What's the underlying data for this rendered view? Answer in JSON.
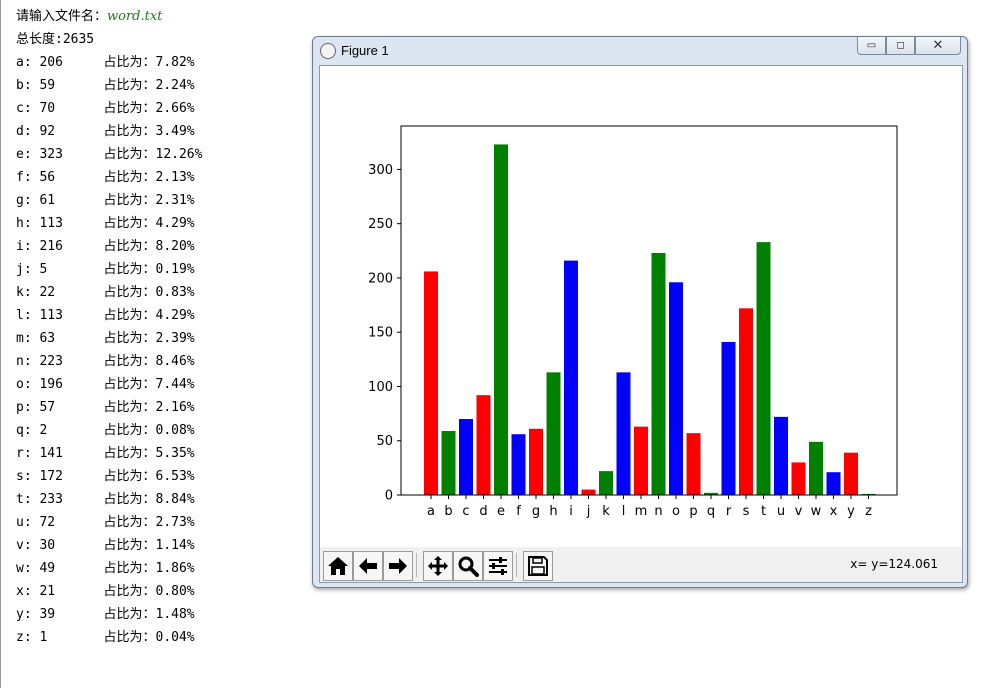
{
  "console": {
    "prompt": "请输入文件名：",
    "filename": "word.txt",
    "total_label": "总长度:",
    "total_value": "2635",
    "ratio_label": "占比为：",
    "rows": [
      {
        "letter": "a:",
        "count": "206",
        "pct": "7.82%"
      },
      {
        "letter": "b:",
        "count": "59",
        "pct": "2.24%"
      },
      {
        "letter": "c:",
        "count": "70",
        "pct": "2.66%"
      },
      {
        "letter": "d:",
        "count": "92",
        "pct": "3.49%"
      },
      {
        "letter": "e:",
        "count": "323",
        "pct": "12.26%"
      },
      {
        "letter": "f:",
        "count": "56",
        "pct": "2.13%"
      },
      {
        "letter": "g:",
        "count": "61",
        "pct": "2.31%"
      },
      {
        "letter": "h:",
        "count": "113",
        "pct": "4.29%"
      },
      {
        "letter": "i:",
        "count": "216",
        "pct": "8.20%"
      },
      {
        "letter": "j:",
        "count": "5",
        "pct": "0.19%"
      },
      {
        "letter": "k:",
        "count": "22",
        "pct": "0.83%"
      },
      {
        "letter": "l:",
        "count": "113",
        "pct": "4.29%"
      },
      {
        "letter": "m:",
        "count": "63",
        "pct": "2.39%"
      },
      {
        "letter": "n:",
        "count": "223",
        "pct": "8.46%"
      },
      {
        "letter": "o:",
        "count": "196",
        "pct": "7.44%"
      },
      {
        "letter": "p:",
        "count": "57",
        "pct": "2.16%"
      },
      {
        "letter": "q:",
        "count": "2",
        "pct": "0.08%"
      },
      {
        "letter": "r:",
        "count": "141",
        "pct": "5.35%"
      },
      {
        "letter": "s:",
        "count": "172",
        "pct": "6.53%"
      },
      {
        "letter": "t:",
        "count": "233",
        "pct": "8.84%"
      },
      {
        "letter": "u:",
        "count": "72",
        "pct": "2.73%"
      },
      {
        "letter": "v:",
        "count": "30",
        "pct": "1.14%"
      },
      {
        "letter": "w:",
        "count": "49",
        "pct": "1.86%"
      },
      {
        "letter": "x:",
        "count": "21",
        "pct": "0.80%"
      },
      {
        "letter": "y:",
        "count": "39",
        "pct": "1.48%"
      },
      {
        "letter": "z:",
        "count": "1",
        "pct": "0.04%"
      }
    ]
  },
  "window": {
    "title": "Figure 1",
    "app_icon": "matplotlib-icon",
    "controls": [
      "minimize-icon",
      "maximize-icon",
      "close-icon"
    ]
  },
  "toolbar": {
    "buttons": [
      "home-icon",
      "back-arrow-icon",
      "forward-arrow-icon",
      "pan-icon",
      "zoom-icon",
      "configure-subplots-icon",
      "save-icon"
    ],
    "coord_text": "x= y=124.061"
  },
  "chart_data": {
    "type": "bar",
    "categories": [
      "a",
      "b",
      "c",
      "d",
      "e",
      "f",
      "g",
      "h",
      "i",
      "j",
      "k",
      "l",
      "m",
      "n",
      "o",
      "p",
      "q",
      "r",
      "s",
      "t",
      "u",
      "v",
      "w",
      "x",
      "y",
      "z"
    ],
    "values": [
      206,
      59,
      70,
      92,
      323,
      56,
      61,
      113,
      216,
      5,
      22,
      113,
      63,
      223,
      196,
      57,
      2,
      141,
      172,
      233,
      72,
      30,
      49,
      21,
      39,
      1
    ],
    "colors_cycle": [
      "#ff0000",
      "#008000",
      "#0000ff"
    ],
    "yticks": [
      0,
      50,
      100,
      150,
      200,
      250,
      300
    ],
    "ylim": [
      0,
      340
    ],
    "title": "",
    "xlabel": "",
    "ylabel": "",
    "grid": false
  }
}
